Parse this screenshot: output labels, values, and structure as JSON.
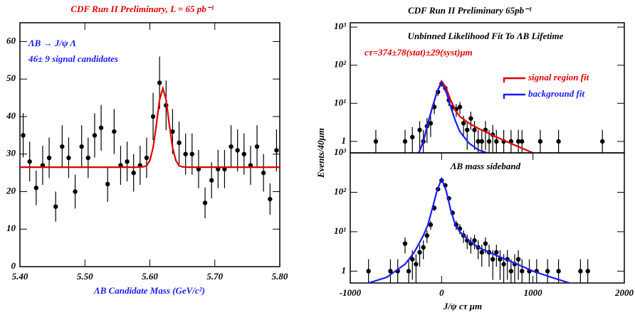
{
  "chart_data": [
    {
      "type": "scatter",
      "title": "CDF Run II Preliminary, L = 65 pb⁻¹",
      "title_color": "#e00000",
      "x_label": "ΛB Candidate Mass (GeV/c²)",
      "x_label_color": "#1a1aff",
      "annotations": [
        {
          "text": "ΛB → J/ψ Λ",
          "color": "#1a1aff"
        },
        {
          "text": "46± 9 signal candidates",
          "color": "#1a1aff"
        }
      ],
      "xlim": [
        5.4,
        5.8
      ],
      "xticks": [
        {
          "value": 5.4,
          "label": "5.40"
        },
        {
          "value": 5.5,
          "label": "5.50"
        },
        {
          "value": 5.6,
          "label": "5.60"
        },
        {
          "value": 5.7,
          "label": "5.70"
        },
        {
          "value": 5.8,
          "label": "5.80"
        }
      ],
      "ylim": [
        0,
        65
      ],
      "yticks": [
        0,
        10,
        20,
        30,
        40,
        50,
        60
      ],
      "log_y": false,
      "series": [
        {
          "kind": "points",
          "color": "#000000",
          "x": [
            5.405,
            5.415,
            5.425,
            5.435,
            5.445,
            5.455,
            5.465,
            5.475,
            5.485,
            5.495,
            5.505,
            5.515,
            5.525,
            5.535,
            5.545,
            5.555,
            5.565,
            5.575,
            5.585,
            5.595,
            5.605,
            5.615,
            5.625,
            5.635,
            5.645,
            5.655,
            5.665,
            5.675,
            5.685,
            5.695,
            5.705,
            5.715,
            5.725,
            5.735,
            5.745,
            5.755,
            5.765,
            5.775,
            5.785,
            5.795
          ],
          "values": [
            35,
            28,
            21,
            27,
            29,
            16,
            32,
            29,
            20,
            32,
            29,
            35,
            37,
            22,
            36,
            27,
            28,
            25,
            27,
            29,
            40,
            49,
            43,
            36,
            33,
            30,
            30,
            26,
            17,
            23,
            26,
            26,
            32,
            31,
            30,
            27,
            32,
            25,
            18,
            31
          ],
          "errors": [
            5.9,
            5.3,
            4.6,
            5.2,
            5.4,
            4,
            5.7,
            5.4,
            4.5,
            5.7,
            5.4,
            5.9,
            6.1,
            4.7,
            6,
            5.2,
            5.3,
            5,
            5.2,
            5.4,
            6.3,
            7,
            6.6,
            6,
            5.7,
            5.5,
            5.5,
            5.1,
            4.1,
            4.8,
            5.1,
            5.1,
            5.7,
            5.6,
            5.5,
            5.2,
            5.7,
            5,
            4.2,
            5.6
          ]
        },
        {
          "kind": "line",
          "color": "#e00000",
          "x": [
            5.4,
            5.58,
            5.59,
            5.595,
            5.6,
            5.605,
            5.61,
            5.615,
            5.62,
            5.625,
            5.63,
            5.635,
            5.64,
            5.645,
            5.65,
            5.66,
            5.8
          ],
          "values": [
            26.5,
            26.5,
            26.6,
            26.9,
            28.3,
            31.7,
            37.8,
            44.5,
            47.5,
            44.5,
            37.8,
            31.7,
            28.3,
            26.9,
            26.6,
            26.5,
            26.5
          ]
        }
      ]
    },
    {
      "type": "scatter",
      "title": "CDF Run II Preliminary     65pb⁻¹",
      "title_color": "#000000",
      "y_label": "Events/40μm",
      "annotations": [
        {
          "text": "Unbinned Likelihood Fit To ΛB Lifetime",
          "color": "#000000"
        },
        {
          "text": "cτ=374±78(stat)±29(syst)μm",
          "color": "#e00000"
        }
      ],
      "xlim": [
        -1000,
        2000
      ],
      "ylim": [
        0.5,
        1300
      ],
      "log_y": true,
      "yticks": [
        1,
        {
          "value": 10,
          "label": "10¹"
        },
        {
          "value": 100,
          "label": "10²"
        },
        {
          "value": 1000,
          "label": "10³"
        }
      ],
      "series": [
        {
          "kind": "points",
          "color": "#000000",
          "x": [
            -720,
            -400,
            -320,
            -240,
            -200,
            -160,
            -120,
            -80,
            -40,
            0,
            40,
            80,
            120,
            160,
            200,
            240,
            280,
            320,
            360,
            400,
            440,
            480,
            520,
            560,
            600,
            680,
            760,
            840,
            880,
            1080,
            1280,
            1760
          ],
          "values": [
            1,
            1,
            1.3,
            2,
            1,
            2.5,
            3,
            8,
            20,
            33,
            25,
            12,
            8,
            7,
            8,
            3,
            2,
            4,
            2,
            1,
            1,
            2,
            1,
            1.5,
            1,
            1,
            1,
            1,
            1,
            1,
            1,
            1
          ],
          "errors": [
            1,
            1,
            1.1,
            1.4,
            1,
            1.6,
            1.7,
            2.8,
            4.5,
            5.7,
            5,
            3.5,
            2.8,
            2.6,
            2.8,
            1.7,
            1.4,
            2,
            1.4,
            1,
            1,
            1.4,
            1,
            1.2,
            1,
            1,
            1,
            1,
            1,
            1,
            1,
            1
          ]
        },
        {
          "kind": "line",
          "name": "signal region fit",
          "color": "#e00000",
          "x": [
            -250,
            -200,
            -150,
            -100,
            -50,
            0,
            50,
            100,
            150,
            200,
            300,
            400,
            600,
            800,
            1000
          ],
          "values": [
            0.5,
            1,
            3,
            8,
            20,
            38,
            25,
            12,
            6.5,
            4.5,
            3,
            2.2,
            1.3,
            0.8,
            0.5
          ]
        },
        {
          "kind": "line",
          "name": "background fit",
          "color": "#1a1aff",
          "x": [
            -250,
            -200,
            -150,
            -100,
            -50,
            0,
            50,
            100,
            150,
            200,
            300,
            400,
            500
          ],
          "values": [
            0.5,
            1,
            3,
            8,
            20,
            35,
            20,
            8,
            3.5,
            1.8,
            0.9,
            0.6,
            0.5
          ]
        }
      ]
    },
    {
      "type": "scatter",
      "x_label": "J/ψ cτ μm",
      "x_label_color": "#000000",
      "annotations": [
        {
          "text": "ΛB mass sideband",
          "color": "#000000"
        }
      ],
      "xlim": [
        -1000,
        2000
      ],
      "xticks": [
        -1000,
        0,
        1000,
        2000
      ],
      "ylim": [
        0.5,
        1000
      ],
      "log_y": true,
      "yticks": [
        1,
        {
          "value": 10,
          "label": "10¹"
        },
        {
          "value": 100,
          "label": "10²"
        },
        {
          "value": 1000,
          "label": "10³"
        }
      ],
      "series": [
        {
          "kind": "points",
          "color": "#000000",
          "x": [
            -800,
            -560,
            -480,
            -400,
            -360,
            -320,
            -280,
            -240,
            -200,
            -160,
            -120,
            -80,
            -40,
            0,
            40,
            80,
            120,
            160,
            200,
            240,
            280,
            320,
            360,
            400,
            440,
            480,
            520,
            560,
            600,
            640,
            680,
            720,
            760,
            800,
            840,
            880,
            960,
            1040,
            1160,
            1280,
            1520,
            1600
          ],
          "values": [
            1,
            1,
            1,
            5,
            1,
            2,
            1.5,
            3,
            4,
            8,
            15,
            40,
            120,
            200,
            150,
            70,
            30,
            15,
            12,
            8,
            6,
            5,
            6,
            4,
            3,
            5,
            3,
            2,
            3,
            2,
            1.5,
            2,
            1,
            1.5,
            2,
            1,
            1,
            1,
            1,
            1,
            1,
            1
          ],
          "errors": [
            1,
            1,
            1,
            2.2,
            1,
            1.4,
            1.2,
            1.7,
            2,
            2.8,
            3.9,
            6.3,
            11,
            14,
            12,
            8.4,
            5.5,
            3.9,
            3.5,
            2.8,
            2.4,
            2.2,
            2.4,
            2,
            1.7,
            2.2,
            1.7,
            1.4,
            1.7,
            1.4,
            1.2,
            1.4,
            1,
            1.2,
            1.4,
            1,
            1,
            1,
            1,
            1,
            1,
            1
          ]
        },
        {
          "kind": "line",
          "color": "#1a1aff",
          "x": [
            -800,
            -600,
            -400,
            -300,
            -200,
            -150,
            -100,
            -50,
            0,
            50,
            100,
            150,
            200,
            300,
            400,
            600,
            800,
            1000,
            1200,
            1400
          ],
          "values": [
            0.5,
            0.7,
            1.5,
            3,
            8,
            15,
            40,
            110,
            220,
            110,
            35,
            15,
            10,
            6,
            4,
            2.5,
            1.6,
            1,
            0.7,
            0.5
          ]
        }
      ]
    }
  ]
}
